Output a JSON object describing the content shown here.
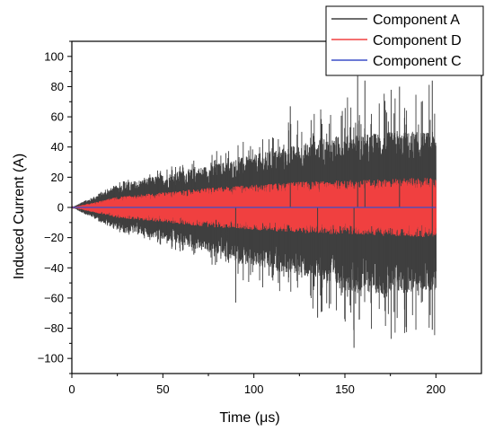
{
  "chart_data": {
    "type": "line",
    "title": "",
    "xlabel": "Time (μs)",
    "ylabel": "Induced Current (A)",
    "xlim": [
      0,
      225
    ],
    "ylim": [
      -110,
      110
    ],
    "grid": false,
    "legend_position": "top-right",
    "x_ticks": [
      0,
      50,
      100,
      150,
      200
    ],
    "y_ticks": [
      -100,
      -80,
      -60,
      -40,
      -20,
      0,
      20,
      40,
      60,
      80,
      100
    ],
    "x_tick_labels": [
      "0",
      "50",
      "100",
      "150",
      "200"
    ],
    "y_tick_labels": [
      "−100",
      "−80",
      "−60",
      "−40",
      "−20",
      "0",
      "20",
      "40",
      "60",
      "80",
      "100"
    ],
    "time_range": [
      0,
      200
    ],
    "series": [
      {
        "name": "Component A",
        "color": "#3f3f3f",
        "description_points": {
          "t": [
            0,
            25,
            50,
            75,
            100,
            125,
            150,
            175,
            200
          ],
          "upper": [
            0,
            15,
            22,
            28,
            35,
            42,
            48,
            50,
            50
          ],
          "lower": [
            0,
            -15,
            -22,
            -30,
            -40,
            -45,
            -55,
            -58,
            -55
          ],
          "spike_max": 87,
          "spike_min": -93
        }
      },
      {
        "name": "Component D",
        "color": "#f04040",
        "description_points": {
          "t": [
            0,
            25,
            50,
            75,
            100,
            125,
            150,
            175,
            200
          ],
          "upper": [
            0,
            7,
            10,
            13,
            15,
            17,
            18,
            19,
            20
          ],
          "lower": [
            0,
            -7,
            -10,
            -13,
            -15,
            -17,
            -18,
            -19,
            -20
          ]
        }
      },
      {
        "name": "Component C",
        "color": "#3b4fc9",
        "description_points": {
          "t": [
            0,
            200
          ],
          "value": [
            0,
            0
          ]
        }
      }
    ]
  }
}
